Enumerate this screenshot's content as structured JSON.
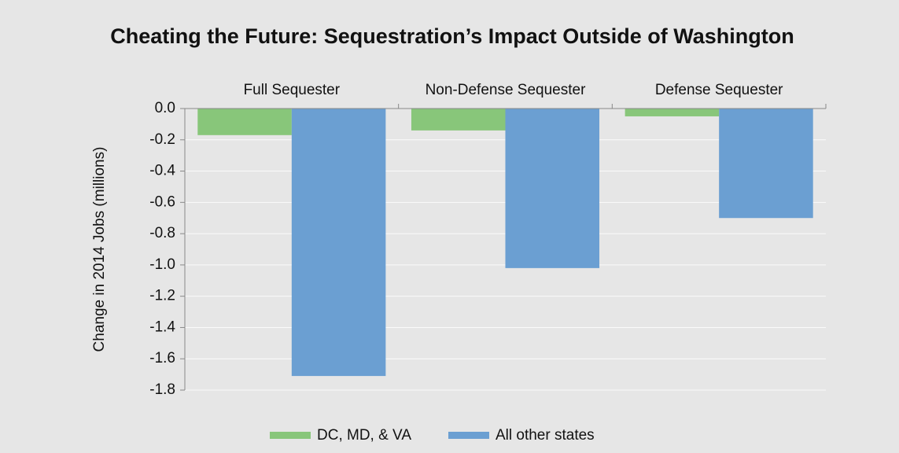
{
  "chart_data": {
    "type": "bar",
    "title": "Cheating the Future: Sequestration’s Impact Outside of Washington",
    "y_label": "Change in 2014 Jobs (millions)",
    "categories": [
      "Full Sequester",
      "Non-Defense Sequester",
      "Defense Sequester"
    ],
    "series": [
      {
        "name": "DC, MD, & VA",
        "color": "#88c67a",
        "values": [
          -0.17,
          -0.14,
          -0.05
        ]
      },
      {
        "name": "All other states",
        "color": "#6b9fd2",
        "values": [
          -1.71,
          -1.02,
          -0.7
        ]
      }
    ],
    "ylim": [
      -1.8,
      0
    ],
    "yticks": [
      {
        "value": 0,
        "label": "0.0"
      },
      -0.2,
      -0.4,
      -0.6,
      -0.8,
      {
        "value": -1,
        "label": "-1.0"
      },
      -1.2,
      -1.4,
      -1.6,
      -1.8
    ],
    "grid": true,
    "legend": "bottom"
  }
}
